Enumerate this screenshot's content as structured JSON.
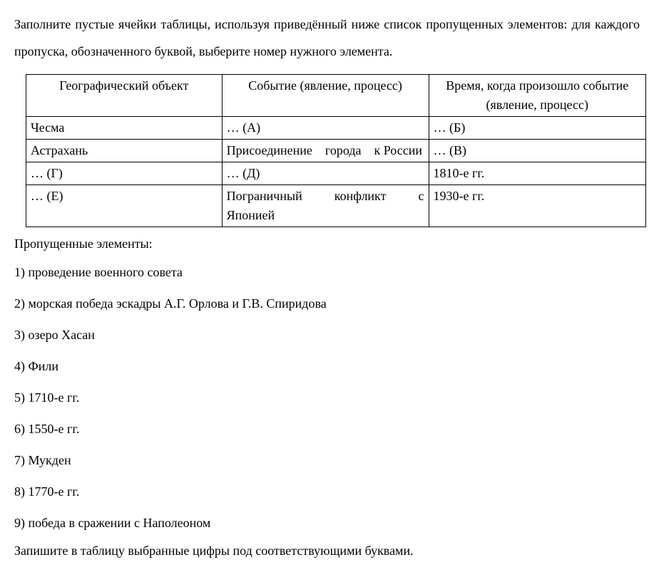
{
  "instructions": "Заполните пустые ячейки таблицы, используя приведённый ниже список пропущенных элементов: для каждого пропуска, обозначенного буквой, выберите номер нужного элемента.",
  "table": {
    "headers": {
      "col1": "Географический объект",
      "col2": "Событие (явление, процесс)",
      "col3": "Время, когда произошло событие (явление, процесс)"
    },
    "rows": [
      {
        "col1": "Чесма",
        "col2": "… (А)",
        "col3": "… (Б)"
      },
      {
        "col1": "Астрахань",
        "col2": "Присоединение города к России",
        "col3": "… (В)"
      },
      {
        "col1": "… (Г)",
        "col2": "… (Д)",
        "col3": "1810-е гг."
      },
      {
        "col1": "… (Е)",
        "col2": "Пограничный конфликт с Японией",
        "col3": "1930-е гг."
      }
    ]
  },
  "missing_label": "Пропущенные элементы:",
  "options": [
    "1) проведение военного совета",
    "2) морская победа эскадры А.Г. Орлова и Г.В. Спиридова",
    "3) озеро Хасан",
    "4) Фили",
    "5) 1710-е гг.",
    "6) 1550-е гг.",
    "7) Мукден",
    "8) 1770-е гг.",
    "9) победа в сражении с Наполеоном"
  ],
  "final_instruction": "Запишите в таблицу выбранные цифры под соответствующими буквами."
}
